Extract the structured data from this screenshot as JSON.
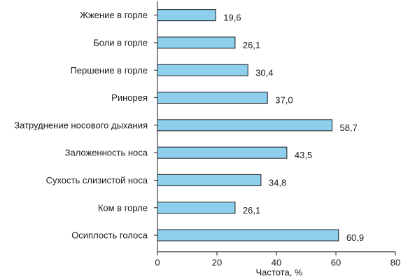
{
  "chart_data": {
    "type": "bar",
    "orientation": "horizontal",
    "categories": [
      "Жжение в горле",
      "Боли в горле",
      "Першение в горле",
      "Ринорея",
      "Затруднение носового дыхания",
      "Заложенность носа",
      "Сухость слизистой носа",
      "Ком в горле",
      "Осиплость голоса"
    ],
    "values": [
      19.6,
      26.1,
      30.4,
      37.0,
      58.7,
      43.5,
      34.8,
      26.1,
      60.9
    ],
    "value_labels": [
      "19,6",
      "26,1",
      "30,4",
      "37,0",
      "58,7",
      "43,5",
      "34,8",
      "26,1",
      "60,9"
    ],
    "xlabel": "Частота, %",
    "xlim": [
      0,
      80
    ],
    "xticks": [
      0,
      20,
      40,
      60,
      80
    ],
    "grid": false,
    "colors": {
      "bar_fill": "#8ecfee",
      "bar_stroke": "#1a1a1a",
      "axis": "#1a1a1a"
    }
  }
}
